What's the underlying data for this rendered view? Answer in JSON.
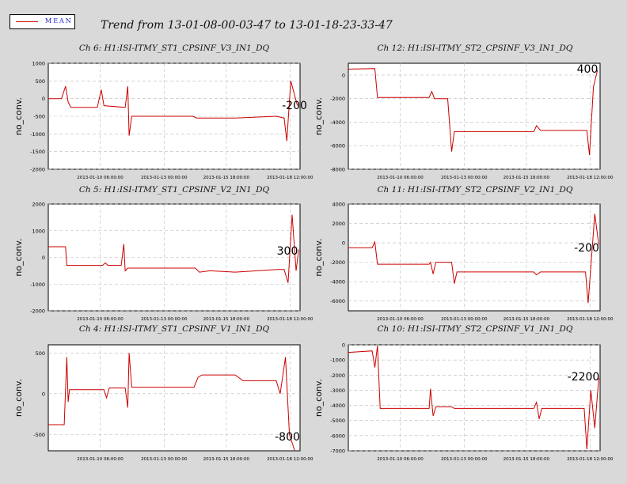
{
  "legend": {
    "label": "MEAN",
    "color": "#cc0000"
  },
  "title": "Trend from 13-01-08-00-03-47 to 13-01-18-23-33-47",
  "x_ticks": [
    "2013-01-10 06:00:00",
    "2013-01-13 00:00:00",
    "2013-01-15 18:00:00",
    "2013-01-18 12:00:00"
  ],
  "chart_data": [
    {
      "type": "line",
      "title": "Ch 6: H1:ISI-ITMY_ST1_CPSINF_V3_IN1_DQ",
      "ylabel": "no_conv.",
      "ylim": [
        -2000,
        1000
      ],
      "yticks": [
        1000,
        500,
        0,
        -500,
        -1000,
        -1500,
        -2000
      ],
      "annotation": "-200",
      "series": [
        {
          "values": [
            [
              0.0,
              0
            ],
            [
              1.0,
              0
            ],
            [
              1.3,
              350
            ],
            [
              1.5,
              -100
            ],
            [
              1.7,
              -250
            ],
            [
              3.7,
              -250
            ],
            [
              4.0,
              250
            ],
            [
              4.2,
              -200
            ],
            [
              5.8,
              -250
            ],
            [
              6.0,
              350
            ],
            [
              6.1,
              -1050
            ],
            [
              6.3,
              -500
            ],
            [
              10.9,
              -500
            ],
            [
              11.2,
              -550
            ],
            [
              14.1,
              -550
            ],
            [
              17.2,
              -500
            ],
            [
              17.8,
              -550
            ],
            [
              18.0,
              -1200
            ],
            [
              18.3,
              500
            ],
            [
              18.8,
              -200
            ]
          ]
        }
      ]
    },
    {
      "type": "line",
      "title": "Ch 12: H1:ISI-ITMY_ST2_CPSINF_V3_IN1_DQ",
      "ylabel": "no_conv.",
      "ylim": [
        -8000,
        1000
      ],
      "yticks": [
        0,
        -2000,
        -4000,
        -6000,
        -8000
      ],
      "annotation": "400",
      "series": [
        {
          "values": [
            [
              0.0,
              500
            ],
            [
              2.0,
              550
            ],
            [
              2.2,
              -1900
            ],
            [
              6.1,
              -1900
            ],
            [
              6.3,
              -1400
            ],
            [
              6.5,
              -2000
            ],
            [
              7.5,
              -2000
            ],
            [
              7.8,
              -6500
            ],
            [
              8.0,
              -4800
            ],
            [
              14.0,
              -4800
            ],
            [
              14.2,
              -4300
            ],
            [
              14.5,
              -4700
            ],
            [
              18.0,
              -4700
            ],
            [
              18.2,
              -6800
            ],
            [
              18.5,
              -1000
            ],
            [
              18.8,
              400
            ]
          ]
        }
      ]
    },
    {
      "type": "line",
      "title": "Ch 5: H1:ISI-ITMY_ST1_CPSINF_V2_IN1_DQ",
      "ylabel": "no_conv.",
      "ylim": [
        -2000,
        2000
      ],
      "yticks": [
        2000,
        1000,
        0,
        -1000,
        -2000
      ],
      "annotation": "300",
      "series": [
        {
          "values": [
            [
              0.0,
              400
            ],
            [
              1.3,
              400
            ],
            [
              1.4,
              -300
            ],
            [
              4.1,
              -300
            ],
            [
              4.3,
              -200
            ],
            [
              4.5,
              -300
            ],
            [
              5.5,
              -300
            ],
            [
              5.7,
              500
            ],
            [
              5.8,
              -500
            ],
            [
              6.0,
              -400
            ],
            [
              11.1,
              -400
            ],
            [
              11.4,
              -550
            ],
            [
              12.2,
              -500
            ],
            [
              14.1,
              -550
            ],
            [
              17.3,
              -450
            ],
            [
              17.8,
              -450
            ],
            [
              18.1,
              -950
            ],
            [
              18.4,
              1600
            ],
            [
              18.7,
              -500
            ],
            [
              18.9,
              300
            ]
          ]
        }
      ]
    },
    {
      "type": "line",
      "title": "Ch 11: H1:ISI-ITMY_ST2_CPSINF_V2_IN1_DQ",
      "ylabel": "no_conv.",
      "ylim": [
        -7000,
        4000
      ],
      "yticks": [
        4000,
        2000,
        0,
        -2000,
        -4000,
        -6000
      ],
      "annotation": "-200",
      "series": [
        {
          "values": [
            [
              0.0,
              -500
            ],
            [
              1.8,
              -500
            ],
            [
              2.0,
              100
            ],
            [
              2.2,
              -2200
            ],
            [
              6.1,
              -2200
            ],
            [
              6.2,
              -2000
            ],
            [
              6.4,
              -3200
            ],
            [
              6.6,
              -2000
            ],
            [
              7.8,
              -2000
            ],
            [
              8.0,
              -4200
            ],
            [
              8.2,
              -3000
            ],
            [
              14.0,
              -3000
            ],
            [
              14.2,
              -3300
            ],
            [
              14.5,
              -3000
            ],
            [
              17.9,
              -3000
            ],
            [
              18.1,
              -6200
            ],
            [
              18.3,
              -2500
            ],
            [
              18.6,
              3000
            ],
            [
              18.9,
              -200
            ]
          ]
        }
      ]
    },
    {
      "type": "line",
      "title": "Ch 4: H1:ISI-ITMY_ST1_CPSINF_V1_IN1_DQ",
      "ylabel": "no_conv.",
      "ylim": [
        -700,
        600
      ],
      "yticks": [
        500,
        0,
        -500
      ],
      "annotation": "-800",
      "series": [
        {
          "values": [
            [
              0.0,
              -380
            ],
            [
              1.2,
              -380
            ],
            [
              1.4,
              450
            ],
            [
              1.5,
              -100
            ],
            [
              1.6,
              50
            ],
            [
              4.2,
              50
            ],
            [
              4.4,
              -50
            ],
            [
              4.6,
              70
            ],
            [
              5.8,
              70
            ],
            [
              6.0,
              -170
            ],
            [
              6.1,
              500
            ],
            [
              6.3,
              80
            ],
            [
              11.0,
              80
            ],
            [
              11.3,
              200
            ],
            [
              11.6,
              230
            ],
            [
              14.1,
              230
            ],
            [
              14.7,
              160
            ],
            [
              17.2,
              160
            ],
            [
              17.5,
              0
            ],
            [
              17.9,
              450
            ],
            [
              18.2,
              -500
            ],
            [
              18.6,
              -800
            ]
          ]
        }
      ]
    },
    {
      "type": "line",
      "title": "Ch 10: H1:ISI-ITMY_ST2_CPSINF_V1_IN1_DQ",
      "ylabel": "no_conv.",
      "ylim": [
        -7000,
        0
      ],
      "yticks": [
        0,
        -1000,
        -2000,
        -3000,
        -4000,
        -5000,
        -6000,
        -7000
      ],
      "annotation": "-2200",
      "series": [
        {
          "values": [
            [
              0.0,
              -500
            ],
            [
              1.8,
              -400
            ],
            [
              2.0,
              -1500
            ],
            [
              2.2,
              -50
            ],
            [
              2.4,
              -4200
            ],
            [
              6.1,
              -4200
            ],
            [
              6.2,
              -2900
            ],
            [
              6.4,
              -4700
            ],
            [
              6.6,
              -4100
            ],
            [
              7.8,
              -4100
            ],
            [
              8.0,
              -4200
            ],
            [
              14.0,
              -4200
            ],
            [
              14.2,
              -3800
            ],
            [
              14.4,
              -4900
            ],
            [
              14.6,
              -4200
            ],
            [
              17.8,
              -4200
            ],
            [
              18.0,
              -6900
            ],
            [
              18.3,
              -3000
            ],
            [
              18.6,
              -5500
            ],
            [
              18.9,
              -2200
            ]
          ]
        }
      ]
    }
  ]
}
